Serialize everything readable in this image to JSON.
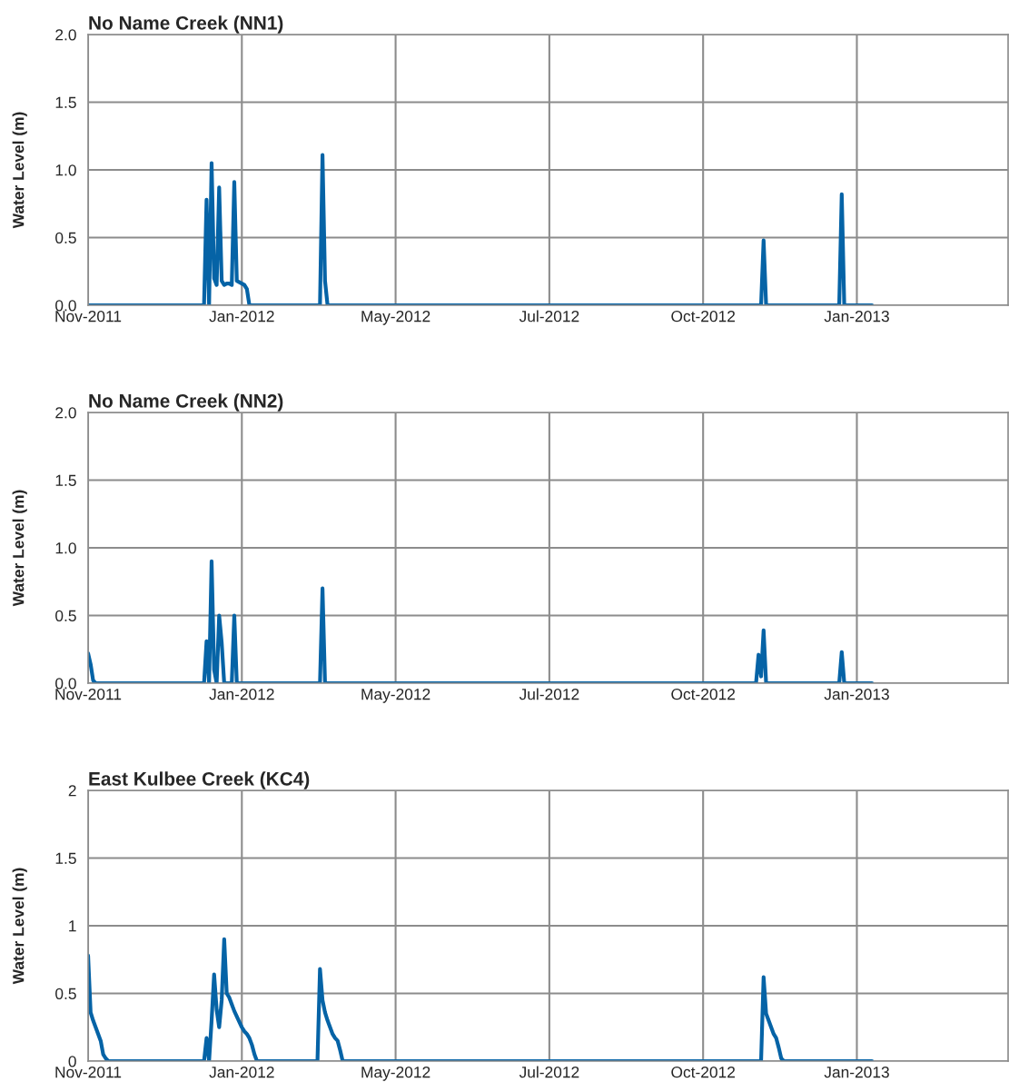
{
  "chart_data": [
    {
      "type": "line",
      "title": "No Name Creek (NN1)",
      "ylabel": "Water Level (m)",
      "categories": [
        "Nov-2011",
        null,
        null,
        null,
        null,
        null,
        null,
        null,
        null,
        null,
        null,
        null,
        null,
        null,
        null,
        null,
        null,
        null,
        null,
        null,
        null,
        null,
        null,
        null,
        null,
        null,
        null,
        null,
        null,
        null,
        null,
        null,
        null,
        null,
        null,
        null,
        null,
        null,
        null,
        null,
        null,
        null,
        null,
        null,
        null,
        null,
        null,
        null,
        null,
        null,
        null,
        null,
        null,
        null,
        null,
        null,
        null,
        null,
        null,
        null,
        null,
        "Jan-2012",
        null,
        null,
        null,
        null,
        null,
        null,
        null,
        null,
        null,
        null,
        null,
        null,
        null,
        null,
        null,
        null,
        null,
        null,
        null,
        null,
        null,
        null,
        null,
        null,
        null,
        null,
        null,
        null,
        null,
        null,
        null,
        null,
        null,
        null,
        null,
        null,
        null,
        null,
        null,
        null,
        null,
        null,
        null,
        null,
        null,
        null,
        null,
        null,
        null,
        null,
        null,
        null,
        null,
        null,
        null,
        null,
        null,
        null,
        null,
        null,
        "May-2012",
        null,
        null,
        null,
        null,
        null,
        null,
        null,
        null,
        null,
        null,
        null,
        null,
        null,
        null,
        null,
        null,
        null,
        null,
        null,
        null,
        null,
        null,
        null,
        null,
        null,
        null,
        null,
        null,
        null,
        null,
        null,
        null,
        null,
        null,
        null,
        null,
        null,
        null,
        null,
        null,
        null,
        null,
        null,
        null,
        null,
        null,
        null,
        null,
        null,
        null,
        null,
        null,
        null,
        null,
        null,
        null,
        null,
        null,
        null,
        null,
        "Jul-2012",
        null,
        null,
        null,
        null,
        null,
        null,
        null,
        null,
        null,
        null,
        null,
        null,
        null,
        null,
        null,
        null,
        null,
        null,
        null,
        null,
        null,
        null,
        null,
        null,
        null,
        null,
        null,
        null,
        null,
        null,
        null,
        null,
        null,
        null,
        null,
        null,
        null,
        null,
        null,
        null,
        null,
        null,
        null,
        null,
        null,
        null,
        null,
        null,
        null,
        null,
        null,
        null,
        null,
        null,
        null,
        null,
        null,
        null,
        null,
        null,
        "Oct-2012",
        null,
        null,
        null,
        null,
        null,
        null,
        null,
        null,
        null,
        null,
        null,
        null,
        null,
        null,
        null,
        null,
        null,
        null,
        null,
        null,
        null,
        null,
        null,
        null,
        null,
        null,
        null,
        null,
        null,
        null,
        null,
        null,
        null,
        null,
        null,
        null,
        null,
        null,
        null,
        null,
        null,
        null,
        null,
        null,
        null,
        null,
        null,
        null,
        null,
        null,
        null,
        null,
        null,
        null,
        null,
        null,
        null,
        null,
        null,
        null,
        "Jan-2013",
        null,
        null,
        null,
        null,
        null,
        null,
        null,
        null,
        null,
        null,
        null,
        null,
        null,
        null,
        null,
        null,
        null,
        null,
        null,
        null,
        null,
        null,
        null,
        null,
        null,
        null,
        null,
        null,
        null,
        null,
        null,
        null,
        null,
        null,
        null,
        null,
        null,
        null,
        null,
        null,
        null,
        null,
        null,
        null,
        null,
        null,
        null,
        null,
        null,
        null,
        null,
        null,
        null,
        null,
        null,
        null,
        null,
        null,
        null,
        null
      ],
      "ylim": [
        0,
        2
      ],
      "yticks": [
        {
          "value": 0,
          "label": "0.0"
        },
        {
          "value": 0.5,
          "label": "0.5"
        },
        {
          "value": 1,
          "label": "1.0"
        },
        {
          "value": 1.5,
          "label": "1.5"
        },
        {
          "value": 2,
          "label": "2.0"
        }
      ],
      "grid": true,
      "marker": "none",
      "line_style": "solid",
      "series": [
        {
          "color": "#0563a6",
          "values": [
            0,
            0,
            0,
            0,
            0,
            0,
            0,
            0,
            0,
            0,
            0,
            0,
            0,
            0,
            0,
            0,
            0,
            0,
            0,
            0,
            0,
            0,
            0,
            0,
            0,
            0,
            0,
            0,
            0,
            0,
            0,
            0,
            0,
            0,
            0,
            0,
            0,
            0,
            0,
            0,
            0,
            0,
            0,
            0,
            0,
            0,
            0,
            0.78,
            0,
            1.05,
            0.2,
            0.15,
            0.87,
            0.18,
            0.15,
            0.16,
            0.16,
            0.15,
            0.91,
            0.18,
            0.17,
            0.16,
            0.15,
            0.12,
            0,
            0,
            0,
            0,
            0,
            0,
            0,
            0,
            0,
            0,
            0,
            0,
            0,
            0,
            0,
            0,
            0,
            0,
            0,
            0,
            0,
            0,
            0,
            0,
            0,
            0,
            0,
            0,
            0,
            1.11,
            0.18,
            0,
            0,
            0,
            0,
            0,
            0,
            0,
            0,
            0,
            0,
            0,
            0,
            0,
            0,
            0,
            0,
            0,
            0,
            0,
            0,
            0,
            0,
            0,
            0,
            0,
            0,
            0,
            0,
            0,
            0,
            0,
            0,
            0,
            0,
            0,
            0,
            0,
            0,
            0,
            0,
            0,
            0,
            0,
            0,
            0,
            0,
            0,
            0,
            0,
            0,
            0,
            0,
            0,
            0,
            0,
            0,
            0,
            0,
            0,
            0,
            0,
            0,
            0,
            0,
            0,
            0,
            0,
            0,
            0,
            0,
            0,
            0,
            0,
            0,
            0,
            0,
            0,
            0,
            0,
            0,
            0,
            0,
            0,
            0,
            0,
            0,
            0,
            0,
            0,
            0,
            0,
            0,
            0,
            0,
            0,
            0,
            0,
            0,
            0,
            0,
            0,
            0,
            0,
            0,
            0,
            0,
            0,
            0,
            0,
            0,
            0,
            0,
            0,
            0,
            0,
            0,
            0,
            0,
            0,
            0,
            0,
            0,
            0,
            0,
            0,
            0,
            0,
            0,
            0,
            0,
            0,
            0,
            0,
            0,
            0,
            0,
            0,
            0,
            0,
            0,
            0,
            0,
            0,
            0,
            0,
            0,
            0,
            0,
            0,
            0,
            0,
            0,
            0,
            0,
            0,
            0,
            0,
            0,
            0,
            0,
            0,
            0,
            0,
            0,
            0,
            0,
            0,
            0,
            0,
            0,
            0,
            0,
            0,
            0.48,
            0,
            0,
            0,
            0,
            0,
            0,
            0,
            0,
            0,
            0,
            0,
            0,
            0,
            0,
            0,
            0,
            0,
            0,
            0,
            0,
            0,
            0,
            0,
            0,
            0,
            0,
            0,
            0,
            0,
            0,
            0.82,
            0,
            0,
            0,
            0,
            0,
            0,
            0,
            0,
            0,
            0,
            0,
            0,
            null,
            null,
            null,
            null,
            null,
            null,
            null,
            null,
            null,
            null,
            null,
            null,
            null,
            null,
            null,
            null,
            null,
            null,
            null,
            null,
            null,
            null,
            null,
            null,
            null,
            null,
            null,
            null,
            null,
            null,
            null,
            null,
            null,
            null,
            null,
            null,
            null,
            null,
            null,
            null,
            null,
            null,
            null,
            null,
            null,
            null,
            null,
            null,
            null,
            null,
            null,
            null,
            null,
            null
          ]
        }
      ]
    },
    {
      "type": "line",
      "title": "No Name Creek (NN2)",
      "ylabel": "Water Level (m)",
      "categories": [
        "Nov-2011",
        null,
        null,
        null,
        null,
        null,
        null,
        null,
        null,
        null,
        null,
        null,
        null,
        null,
        null,
        null,
        null,
        null,
        null,
        null,
        null,
        null,
        null,
        null,
        null,
        null,
        null,
        null,
        null,
        null,
        null,
        null,
        null,
        null,
        null,
        null,
        null,
        null,
        null,
        null,
        null,
        null,
        null,
        null,
        null,
        null,
        null,
        null,
        null,
        null,
        null,
        null,
        null,
        null,
        null,
        null,
        null,
        null,
        null,
        null,
        null,
        "Jan-2012",
        null,
        null,
        null,
        null,
        null,
        null,
        null,
        null,
        null,
        null,
        null,
        null,
        null,
        null,
        null,
        null,
        null,
        null,
        null,
        null,
        null,
        null,
        null,
        null,
        null,
        null,
        null,
        null,
        null,
        null,
        null,
        null,
        null,
        null,
        null,
        null,
        null,
        null,
        null,
        null,
        null,
        null,
        null,
        null,
        null,
        null,
        null,
        null,
        null,
        null,
        null,
        null,
        null,
        null,
        null,
        null,
        null,
        null,
        null,
        null,
        "May-2012",
        null,
        null,
        null,
        null,
        null,
        null,
        null,
        null,
        null,
        null,
        null,
        null,
        null,
        null,
        null,
        null,
        null,
        null,
        null,
        null,
        null,
        null,
        null,
        null,
        null,
        null,
        null,
        null,
        null,
        null,
        null,
        null,
        null,
        null,
        null,
        null,
        null,
        null,
        null,
        null,
        null,
        null,
        null,
        null,
        null,
        null,
        null,
        null,
        null,
        null,
        null,
        null,
        null,
        null,
        null,
        null,
        null,
        null,
        null,
        null,
        "Jul-2012",
        null,
        null,
        null,
        null,
        null,
        null,
        null,
        null,
        null,
        null,
        null,
        null,
        null,
        null,
        null,
        null,
        null,
        null,
        null,
        null,
        null,
        null,
        null,
        null,
        null,
        null,
        null,
        null,
        null,
        null,
        null,
        null,
        null,
        null,
        null,
        null,
        null,
        null,
        null,
        null,
        null,
        null,
        null,
        null,
        null,
        null,
        null,
        null,
        null,
        null,
        null,
        null,
        null,
        null,
        null,
        null,
        null,
        null,
        null,
        null,
        "Oct-2012",
        null,
        null,
        null,
        null,
        null,
        null,
        null,
        null,
        null,
        null,
        null,
        null,
        null,
        null,
        null,
        null,
        null,
        null,
        null,
        null,
        null,
        null,
        null,
        null,
        null,
        null,
        null,
        null,
        null,
        null,
        null,
        null,
        null,
        null,
        null,
        null,
        null,
        null,
        null,
        null,
        null,
        null,
        null,
        null,
        null,
        null,
        null,
        null,
        null,
        null,
        null,
        null,
        null,
        null,
        null,
        null,
        null,
        null,
        null,
        null,
        "Jan-2013",
        null,
        null,
        null,
        null,
        null,
        null,
        null,
        null,
        null,
        null,
        null,
        null,
        null,
        null,
        null,
        null,
        null,
        null,
        null,
        null,
        null,
        null,
        null,
        null,
        null,
        null,
        null,
        null,
        null,
        null,
        null,
        null,
        null,
        null,
        null,
        null,
        null,
        null,
        null,
        null,
        null,
        null,
        null,
        null,
        null,
        null,
        null,
        null,
        null,
        null,
        null,
        null,
        null,
        null,
        null,
        null,
        null,
        null,
        null,
        null
      ],
      "ylim": [
        0,
        2
      ],
      "yticks": [
        {
          "value": 0,
          "label": "0.0"
        },
        {
          "value": 0.5,
          "label": "0.5"
        },
        {
          "value": 1,
          "label": "1.0"
        },
        {
          "value": 1.5,
          "label": "1.5"
        },
        {
          "value": 2,
          "label": "2.0"
        }
      ],
      "grid": true,
      "marker": "none",
      "line_style": "solid",
      "series": [
        {
          "color": "#0563a6",
          "values": [
            0.22,
            0.14,
            0.02,
            0,
            0,
            0,
            0,
            0,
            0,
            0,
            0,
            0,
            0,
            0,
            0,
            0,
            0,
            0,
            0,
            0,
            0,
            0,
            0,
            0,
            0,
            0,
            0,
            0,
            0,
            0,
            0,
            0,
            0,
            0,
            0,
            0,
            0,
            0,
            0,
            0,
            0,
            0,
            0,
            0,
            0,
            0,
            0,
            0.31,
            0,
            0.9,
            0.1,
            0,
            0.5,
            0.3,
            0,
            0,
            0,
            0,
            0.5,
            0,
            0,
            0,
            0,
            0,
            0,
            0,
            0,
            0,
            0,
            0,
            0,
            0,
            0,
            0,
            0,
            0,
            0,
            0,
            0,
            0,
            0,
            0,
            0,
            0,
            0,
            0,
            0,
            0,
            0,
            0,
            0,
            0,
            0,
            0.7,
            0,
            0,
            0,
            0,
            0,
            0,
            0,
            0,
            0,
            0,
            0,
            0,
            0,
            0,
            0,
            0,
            0,
            0,
            0,
            0,
            0,
            0,
            0,
            0,
            0,
            0,
            0,
            0,
            0,
            0,
            0,
            0,
            0,
            0,
            0,
            0,
            0,
            0,
            0,
            0,
            0,
            0,
            0,
            0,
            0,
            0,
            0,
            0,
            0,
            0,
            0,
            0,
            0,
            0,
            0,
            0,
            0,
            0,
            0,
            0,
            0,
            0,
            0,
            0,
            0,
            0,
            0,
            0,
            0,
            0,
            0,
            0,
            0,
            0,
            0,
            0,
            0,
            0,
            0,
            0,
            0,
            0,
            0,
            0,
            0,
            0,
            0,
            0,
            0,
            0,
            0,
            0,
            0,
            0,
            0,
            0,
            0,
            0,
            0,
            0,
            0,
            0,
            0,
            0,
            0,
            0,
            0,
            0,
            0,
            0,
            0,
            0,
            0,
            0,
            0,
            0,
            0,
            0,
            0,
            0,
            0,
            0,
            0,
            0,
            0,
            0,
            0,
            0,
            0,
            0,
            0,
            0,
            0,
            0,
            0,
            0,
            0,
            0,
            0,
            0,
            0,
            0,
            0,
            0,
            0,
            0,
            0,
            0,
            0,
            0,
            0,
            0,
            0,
            0,
            0,
            0,
            0,
            0,
            0,
            0,
            0,
            0,
            0,
            0,
            0,
            0,
            0,
            0,
            0,
            0,
            0,
            0,
            0.21,
            0.05,
            0.39,
            0,
            0,
            0,
            0,
            0,
            0,
            0,
            0,
            0,
            0,
            0,
            0,
            0,
            0,
            0,
            0,
            0,
            0,
            0,
            0,
            0,
            0,
            0,
            0,
            0,
            0,
            0,
            0,
            0,
            0,
            0.23,
            0,
            0,
            0,
            0,
            0,
            0,
            0,
            0,
            0,
            0,
            0,
            0,
            null,
            null,
            null,
            null,
            null,
            null,
            null,
            null,
            null,
            null,
            null,
            null,
            null,
            null,
            null,
            null,
            null,
            null,
            null,
            null,
            null,
            null,
            null,
            null,
            null,
            null,
            null,
            null,
            null,
            null,
            null,
            null,
            null,
            null,
            null,
            null,
            null,
            null,
            null,
            null,
            null,
            null,
            null,
            null,
            null,
            null,
            null,
            null,
            null,
            null,
            null,
            null,
            null,
            null
          ]
        }
      ]
    },
    {
      "type": "line",
      "title": "East Kulbee Creek (KC4)",
      "ylabel": "Water Level (m)",
      "categories": [
        "Nov-2011",
        null,
        null,
        null,
        null,
        null,
        null,
        null,
        null,
        null,
        null,
        null,
        null,
        null,
        null,
        null,
        null,
        null,
        null,
        null,
        null,
        null,
        null,
        null,
        null,
        null,
        null,
        null,
        null,
        null,
        null,
        null,
        null,
        null,
        null,
        null,
        null,
        null,
        null,
        null,
        null,
        null,
        null,
        null,
        null,
        null,
        null,
        null,
        null,
        null,
        null,
        null,
        null,
        null,
        null,
        null,
        null,
        null,
        null,
        null,
        null,
        "Jan-2012",
        null,
        null,
        null,
        null,
        null,
        null,
        null,
        null,
        null,
        null,
        null,
        null,
        null,
        null,
        null,
        null,
        null,
        null,
        null,
        null,
        null,
        null,
        null,
        null,
        null,
        null,
        null,
        null,
        null,
        null,
        null,
        null,
        null,
        null,
        null,
        null,
        null,
        null,
        null,
        null,
        null,
        null,
        null,
        null,
        null,
        null,
        null,
        null,
        null,
        null,
        null,
        null,
        null,
        null,
        null,
        null,
        null,
        null,
        null,
        null,
        "May-2012",
        null,
        null,
        null,
        null,
        null,
        null,
        null,
        null,
        null,
        null,
        null,
        null,
        null,
        null,
        null,
        null,
        null,
        null,
        null,
        null,
        null,
        null,
        null,
        null,
        null,
        null,
        null,
        null,
        null,
        null,
        null,
        null,
        null,
        null,
        null,
        null,
        null,
        null,
        null,
        null,
        null,
        null,
        null,
        null,
        null,
        null,
        null,
        null,
        null,
        null,
        null,
        null,
        null,
        null,
        null,
        null,
        null,
        null,
        null,
        null,
        "Jul-2012",
        null,
        null,
        null,
        null,
        null,
        null,
        null,
        null,
        null,
        null,
        null,
        null,
        null,
        null,
        null,
        null,
        null,
        null,
        null,
        null,
        null,
        null,
        null,
        null,
        null,
        null,
        null,
        null,
        null,
        null,
        null,
        null,
        null,
        null,
        null,
        null,
        null,
        null,
        null,
        null,
        null,
        null,
        null,
        null,
        null,
        null,
        null,
        null,
        null,
        null,
        null,
        null,
        null,
        null,
        null,
        null,
        null,
        null,
        null,
        null,
        "Oct-2012",
        null,
        null,
        null,
        null,
        null,
        null,
        null,
        null,
        null,
        null,
        null,
        null,
        null,
        null,
        null,
        null,
        null,
        null,
        null,
        null,
        null,
        null,
        null,
        null,
        null,
        null,
        null,
        null,
        null,
        null,
        null,
        null,
        null,
        null,
        null,
        null,
        null,
        null,
        null,
        null,
        null,
        null,
        null,
        null,
        null,
        null,
        null,
        null,
        null,
        null,
        null,
        null,
        null,
        null,
        null,
        null,
        null,
        null,
        null,
        null,
        "Jan-2013",
        null,
        null,
        null,
        null,
        null,
        null,
        null,
        null,
        null,
        null,
        null,
        null,
        null,
        null,
        null,
        null,
        null,
        null,
        null,
        null,
        null,
        null,
        null,
        null,
        null,
        null,
        null,
        null,
        null,
        null,
        null,
        null,
        null,
        null,
        null,
        null,
        null,
        null,
        null,
        null,
        null,
        null,
        null,
        null,
        null,
        null,
        null,
        null,
        null,
        null,
        null,
        null,
        null,
        null,
        null,
        null,
        null,
        null,
        null,
        null
      ],
      "ylim": [
        0,
        2
      ],
      "yticks": [
        0,
        0.5,
        1,
        1.5,
        2
      ],
      "grid": true,
      "marker": "none",
      "line_style": "solid",
      "series": [
        {
          "color": "#0563a6",
          "values": [
            0.78,
            0.36,
            0.3,
            0.25,
            0.2,
            0.15,
            0.05,
            0.02,
            0,
            0,
            0,
            0,
            0,
            0,
            0,
            0,
            0,
            0,
            0,
            0,
            0,
            0,
            0,
            0,
            0,
            0,
            0,
            0,
            0,
            0,
            0,
            0,
            0,
            0,
            0,
            0,
            0,
            0,
            0,
            0,
            0,
            0,
            0,
            0,
            0,
            0,
            0,
            0.17,
            0,
            0.3,
            0.64,
            0.38,
            0.25,
            0.45,
            0.9,
            0.5,
            0.47,
            0.42,
            0.37,
            0.33,
            0.29,
            0.25,
            0.22,
            0.2,
            0.17,
            0.12,
            0.05,
            0,
            0,
            0,
            0,
            0,
            0,
            0,
            0,
            0,
            0,
            0,
            0,
            0,
            0,
            0,
            0,
            0,
            0,
            0,
            0,
            0,
            0,
            0,
            0,
            0,
            0.68,
            0.45,
            0.36,
            0.3,
            0.25,
            0.2,
            0.17,
            0.15,
            0.08,
            0,
            0,
            0,
            0,
            0,
            0,
            0,
            0,
            0,
            0,
            0,
            0,
            0,
            0,
            0,
            0,
            0,
            0,
            0,
            0,
            0,
            0,
            0,
            0,
            0,
            0,
            0,
            0,
            0,
            0,
            0,
            0,
            0,
            0,
            0,
            0,
            0,
            0,
            0,
            0,
            0,
            0,
            0,
            0,
            0,
            0,
            0,
            0,
            0,
            0,
            0,
            0,
            0,
            0,
            0,
            0,
            0,
            0,
            0,
            0,
            0,
            0,
            0,
            0,
            0,
            0,
            0,
            0,
            0,
            0,
            0,
            0,
            0,
            0,
            0,
            0,
            0,
            0,
            0,
            0,
            0,
            0,
            0,
            0,
            0,
            0,
            0,
            0,
            0,
            0,
            0,
            0,
            0,
            0,
            0,
            0,
            0,
            0,
            0,
            0,
            0,
            0,
            0,
            0,
            0,
            0,
            0,
            0,
            0,
            0,
            0,
            0,
            0,
            0,
            0,
            0,
            0,
            0,
            0,
            0,
            0,
            0,
            0,
            0,
            0,
            0,
            0,
            0,
            0,
            0,
            0,
            0,
            0,
            0,
            0,
            0,
            0,
            0,
            0,
            0,
            0,
            0,
            0,
            0,
            0,
            0,
            0,
            0,
            0,
            0,
            0,
            0,
            0,
            0,
            0,
            0,
            0,
            0,
            0,
            0,
            0,
            0,
            0,
            0,
            0,
            0,
            0,
            0.62,
            0.35,
            0.3,
            0.25,
            0.2,
            0.17,
            0.1,
            0.02,
            0,
            0,
            0,
            0,
            0,
            0,
            0,
            0,
            0,
            0,
            0,
            0,
            0,
            0,
            0,
            0,
            0,
            0,
            0,
            0,
            0,
            0,
            0,
            0,
            0,
            0,
            0,
            0,
            0,
            0,
            0,
            0,
            0,
            0,
            0,
            0,
            null,
            null,
            null,
            null,
            null,
            null,
            null,
            null,
            null,
            null,
            null,
            null,
            null,
            null,
            null,
            null,
            null,
            null,
            null,
            null,
            null,
            null,
            null,
            null,
            null,
            null,
            null,
            null,
            null,
            null,
            null,
            null,
            null,
            null,
            null,
            null,
            null,
            null,
            null,
            null,
            null,
            null,
            null,
            null,
            null,
            null,
            null,
            null,
            null,
            null,
            null,
            null,
            null,
            null
          ]
        }
      ]
    }
  ]
}
